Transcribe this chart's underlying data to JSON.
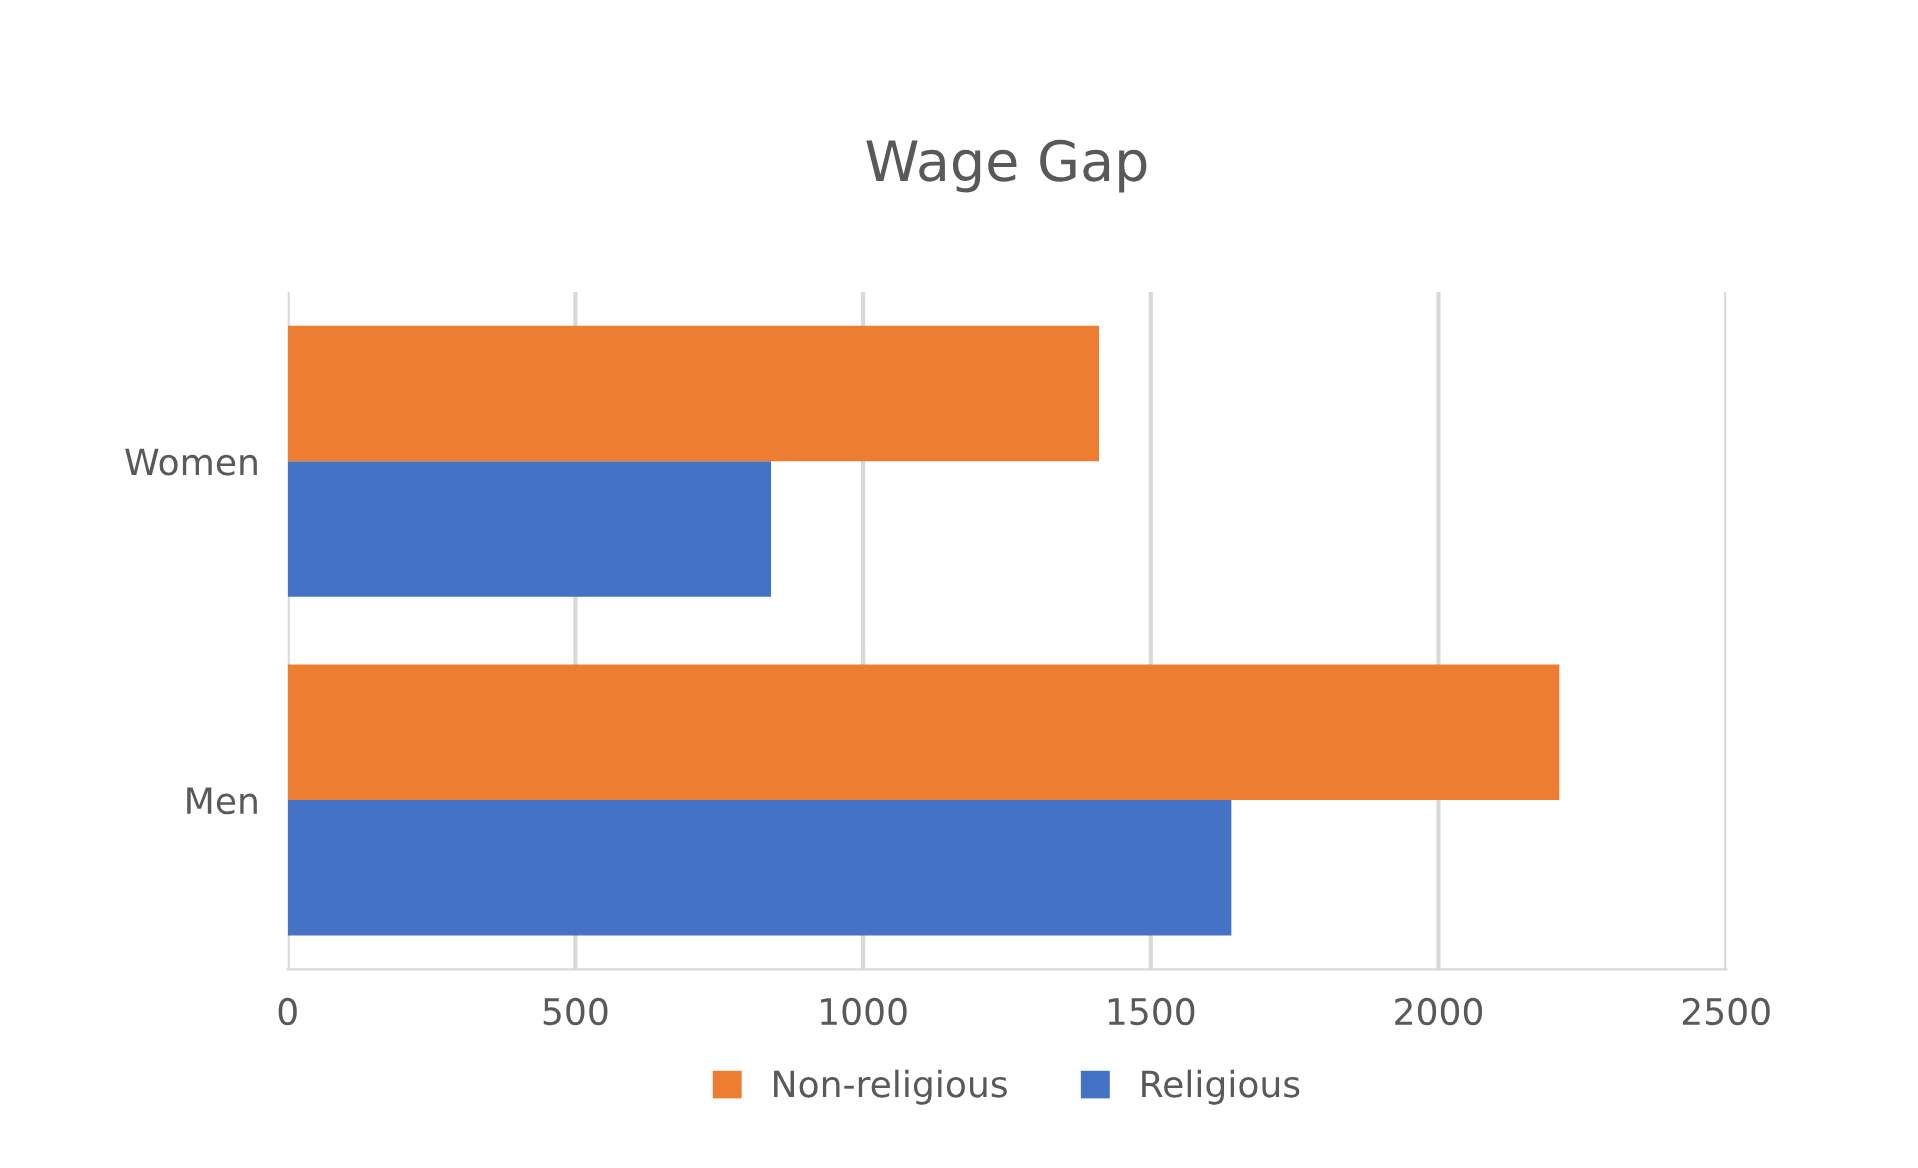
{
  "chart_data": {
    "type": "bar",
    "orientation": "horizontal",
    "title": "Wage Gap",
    "categories": [
      "Women",
      "Men"
    ],
    "series": [
      {
        "name": "Religious",
        "color": "#4472c4",
        "values": [
          840,
          1640
        ]
      },
      {
        "name": "Non-religious",
        "color": "#ed7d31",
        "values": [
          1410,
          2210
        ]
      }
    ],
    "xlim": [
      0,
      2500
    ],
    "xticks": [
      0,
      500,
      1000,
      1500,
      2000,
      2500
    ],
    "grid": "x",
    "legend": "bottom"
  }
}
